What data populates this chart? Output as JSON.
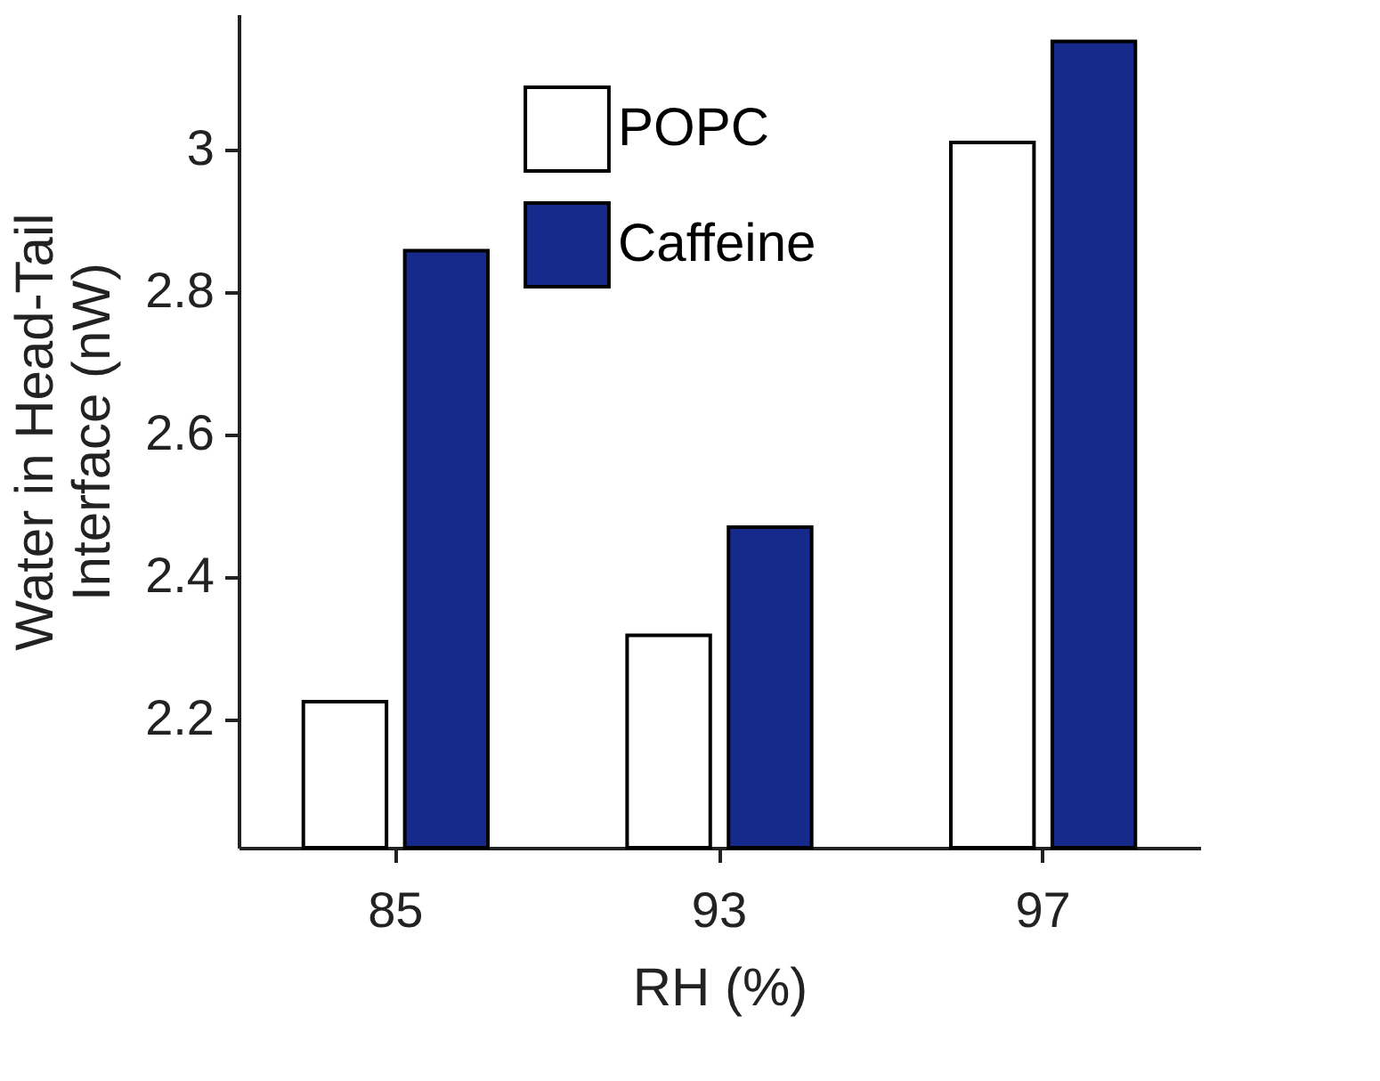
{
  "chart_data": {
    "type": "bar",
    "xlabel": "RH (%)",
    "ylabel": "Water in Head-Tail\nInterface  (nW)",
    "categories": [
      "85",
      "93",
      "97"
    ],
    "series": [
      {
        "name": "POPC",
        "color": "#ffffff",
        "values": [
          2.225,
          2.318,
          3.01
        ]
      },
      {
        "name": "Caffeine",
        "color": "#152a8a",
        "values": [
          2.858,
          2.47,
          3.152
        ]
      }
    ],
    "ylim": [
      2.02,
      3.19
    ],
    "yticks": [
      2.2,
      2.4,
      2.6,
      2.8,
      3
    ],
    "grid": false,
    "legend": "top"
  }
}
